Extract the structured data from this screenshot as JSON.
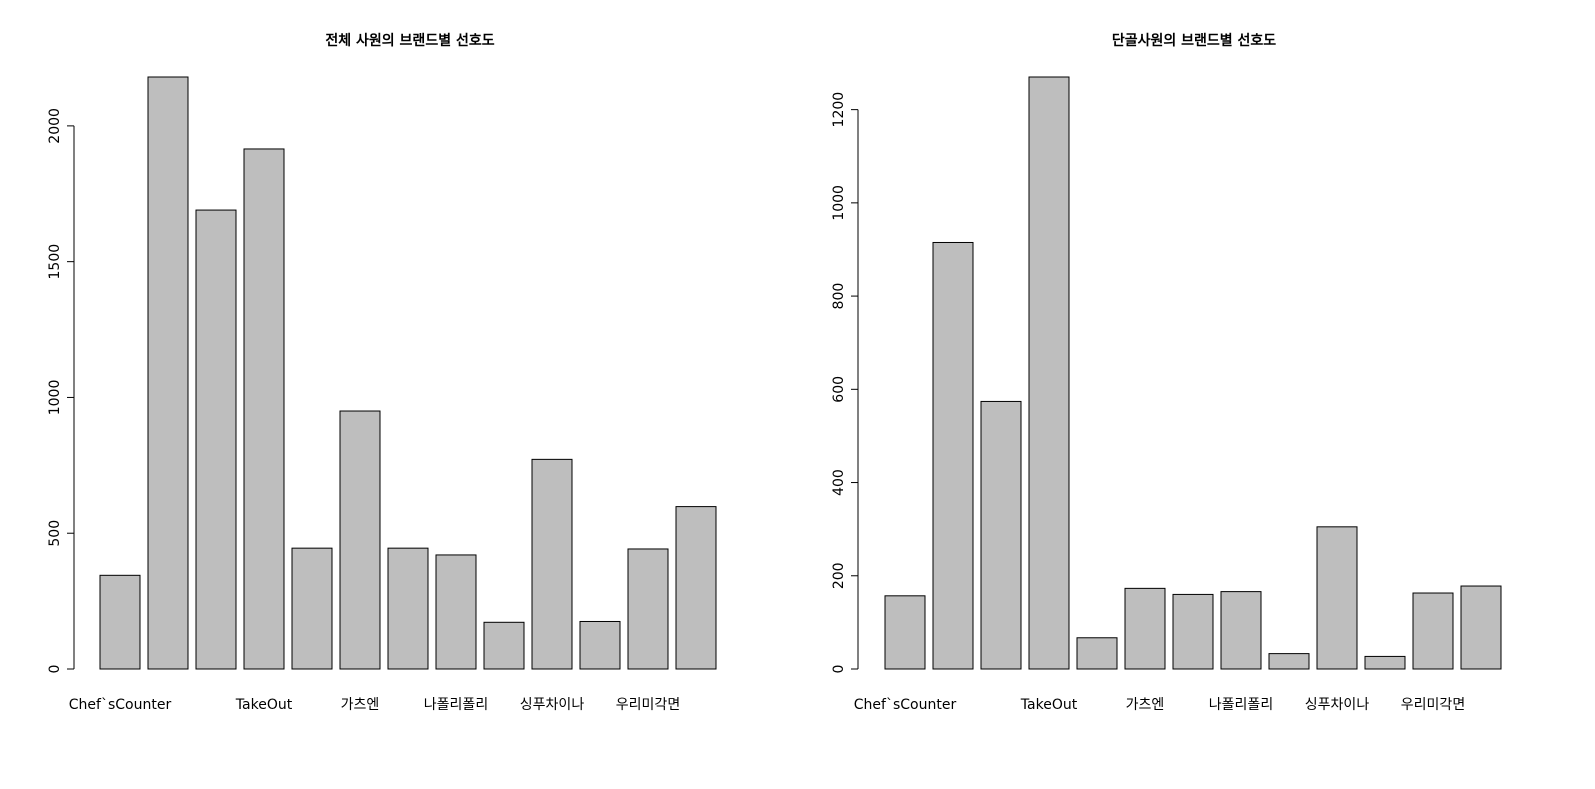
{
  "chart_data": [
    {
      "type": "bar",
      "title": "전체 사원의 브랜드별 선호도",
      "xlabel": "",
      "ylabel": "",
      "categories": [
        "Chef`sCounter",
        "",
        "",
        "TakeOut",
        "",
        "가츠엔",
        "",
        "나폴리폴리",
        "",
        "싱푸차이나",
        "",
        "우리미각면",
        ""
      ],
      "values": [
        345,
        2180,
        1690,
        1915,
        445,
        950,
        445,
        420,
        172,
        772,
        175,
        442,
        598
      ],
      "yticks": [
        0,
        500,
        1000,
        1500,
        2000
      ],
      "ylim": [
        0,
        2180
      ],
      "grid": false
    },
    {
      "type": "bar",
      "title": "단골사원의 브랜드별 선호도",
      "xlabel": "",
      "ylabel": "",
      "categories": [
        "Chef`sCounter",
        "",
        "",
        "TakeOut",
        "",
        "가츠엔",
        "",
        "나폴리폴리",
        "",
        "싱푸차이나",
        "",
        "우리미각면",
        ""
      ],
      "values": [
        157,
        915,
        574,
        1270,
        67,
        173,
        160,
        166,
        33,
        305,
        27,
        163,
        178
      ],
      "yticks": [
        0,
        200,
        400,
        600,
        800,
        1000,
        1200
      ],
      "ylim": [
        0,
        1270
      ],
      "grid": false
    }
  ]
}
